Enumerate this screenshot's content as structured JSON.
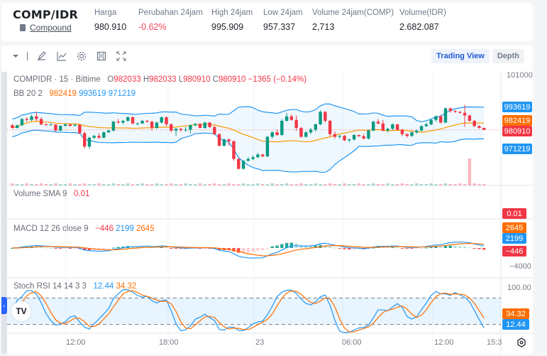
{
  "header": {
    "pair": "COMP/IDR",
    "coin_name": "Compound",
    "stats": [
      {
        "label": "Harga",
        "value": "980.910",
        "negative": false
      },
      {
        "label": "Perubahan 24jam",
        "value": "-0.62%",
        "negative": true
      },
      {
        "label": "High 24jam",
        "value": "995.909",
        "negative": false
      },
      {
        "label": "Low 24jam",
        "value": "957.337",
        "negative": false
      },
      {
        "label": "Volume 24jam(COMP)",
        "value": "2,713",
        "negative": false
      },
      {
        "label": "Volume(IDR)",
        "value": "2.682.087",
        "negative": false
      }
    ]
  },
  "toolbar": {
    "icons": [
      "chevron-down-icon",
      "separator",
      "pencil-icon",
      "indicator-chart-icon",
      "gear-icon",
      "save-icon",
      "fullscreen-icon"
    ],
    "tabs": [
      {
        "label": "Trading View",
        "active": true
      },
      {
        "label": "Depth",
        "active": false
      }
    ]
  },
  "main_pane": {
    "symbol_label": "COMPIDR · 15 · Bittime",
    "ohlc": {
      "o_label": "O",
      "o": "982033",
      "h_label": "H",
      "h": "982033",
      "l_label": "L",
      "l": "980910",
      "c_label": "C",
      "c": "980910",
      "change": "−1365 (−0.14%)"
    },
    "bb_label": "BB 20 2",
    "bb_values": {
      "basis": "982419",
      "upper": "993619",
      "lower": "971219"
    },
    "axis_top": "1010000",
    "tags": [
      {
        "value": "993619",
        "color": "#2196f3"
      },
      {
        "value": "982419",
        "color": "#ff6d00"
      },
      {
        "value": "980910",
        "color": "#f23645"
      },
      {
        "value": "971219",
        "color": "#2196f3"
      }
    ]
  },
  "volume_pane": {
    "label": "Volume SMA 9",
    "value": "0.01",
    "tag": "0.01"
  },
  "macd_pane": {
    "label": "MACD 12 26 close 9",
    "hist": "−446",
    "macd": "2199",
    "signal": "2645",
    "tags": [
      {
        "value": "2645",
        "color": "#ff6d00"
      },
      {
        "value": "2199",
        "color": "#2196f3"
      },
      {
        "value": "−446",
        "color": "#f23645"
      }
    ],
    "axis_low": "−4000"
  },
  "stoch_pane": {
    "label": "Stoch RSI 14 14 3 3",
    "k": "12.44",
    "d": "34.32",
    "axis_top": "100.00",
    "tags": [
      {
        "value": "34.32",
        "color": "#ff6d00"
      },
      {
        "value": "12.44",
        "color": "#2196f3"
      }
    ]
  },
  "time_axis": [
    "12:00",
    "18:00",
    "23",
    "06:00",
    "12:00",
    "15:3"
  ],
  "colors": {
    "up": "#089981",
    "down": "#f23645",
    "bb": "#2196f3",
    "basis": "#ff9800",
    "accent": "#1e5bd6"
  },
  "chart_data": {
    "type": "candlestick",
    "title": "COMPIDR · 15 · Bittime",
    "ylabel": "IDR",
    "ylim": [
      955000,
      1012000
    ],
    "x_ticks": [
      "12:00",
      "18:00",
      "23",
      "06:00",
      "12:00",
      "15:3"
    ],
    "candles": [
      [
        983500,
        984200,
        981500,
        982000
      ],
      [
        982000,
        983800,
        981700,
        983500
      ],
      [
        983500,
        987500,
        983000,
        987000
      ],
      [
        987000,
        988000,
        985500,
        986500
      ],
      [
        986500,
        989500,
        985800,
        988500
      ],
      [
        988500,
        991000,
        986000,
        987000
      ],
      [
        987000,
        988000,
        983500,
        984000
      ],
      [
        984000,
        984500,
        983200,
        983700
      ],
      [
        983700,
        984700,
        983400,
        983900
      ],
      [
        983900,
        984000,
        980000,
        980500
      ],
      [
        980500,
        983500,
        980000,
        983200
      ],
      [
        983200,
        984400,
        982800,
        984000
      ],
      [
        984000,
        984300,
        982600,
        983200
      ],
      [
        983200,
        984100,
        982900,
        983800
      ],
      [
        983800,
        984000,
        978500,
        979000
      ],
      [
        979000,
        980000,
        970500,
        971500
      ],
      [
        971500,
        977000,
        970200,
        976500
      ],
      [
        976500,
        978000,
        975800,
        977500
      ],
      [
        977500,
        979000,
        975800,
        976500
      ],
      [
        976500,
        980000,
        976200,
        979500
      ],
      [
        979500,
        981000,
        979200,
        980500
      ],
      [
        980500,
        986000,
        980000,
        985500
      ],
      [
        985500,
        987000,
        984500,
        985000
      ],
      [
        985000,
        986500,
        984000,
        986000
      ],
      [
        986000,
        988500,
        985500,
        988000
      ],
      [
        988000,
        988500,
        984000,
        984500
      ],
      [
        984500,
        985000,
        983500,
        984500
      ],
      [
        984500,
        986500,
        984200,
        986000
      ],
      [
        986000,
        986500,
        985000,
        985500
      ],
      [
        985500,
        986000,
        980500,
        982000
      ],
      [
        982000,
        985500,
        981500,
        985000
      ],
      [
        985000,
        988500,
        984500,
        988000
      ],
      [
        988000,
        988500,
        983000,
        984000
      ],
      [
        984000,
        984500,
        979500,
        980500
      ],
      [
        980500,
        982000,
        977500,
        981500
      ],
      [
        981500,
        981800,
        979800,
        980800
      ],
      [
        980800,
        982500,
        979800,
        981000
      ],
      [
        981000,
        984000,
        978800,
        983500
      ],
      [
        983500,
        984800,
        983000,
        984200
      ],
      [
        984200,
        984800,
        981800,
        982000
      ],
      [
        982000,
        985500,
        981500,
        985000
      ],
      [
        985000,
        985400,
        982000,
        982500
      ],
      [
        982500,
        983000,
        978000,
        978500
      ],
      [
        978500,
        979000,
        971500,
        972000
      ],
      [
        972000,
        976000,
        971500,
        975500
      ],
      [
        975500,
        976000,
        972000,
        974500
      ],
      [
        974500,
        975000,
        963500,
        964500
      ],
      [
        964500,
        965000,
        958500,
        959000
      ],
      [
        959000,
        963800,
        958500,
        963500
      ],
      [
        963500,
        965500,
        963000,
        964500
      ],
      [
        964500,
        966500,
        963800,
        965500
      ],
      [
        965500,
        968000,
        965000,
        967000
      ],
      [
        967000,
        967500,
        965500,
        966000
      ],
      [
        966000,
        977500,
        965500,
        977000
      ],
      [
        977000,
        980000,
        976000,
        979500
      ],
      [
        979500,
        981000,
        977500,
        978000
      ],
      [
        978000,
        987000,
        977500,
        986000
      ],
      [
        986000,
        990500,
        985500,
        988500
      ],
      [
        988500,
        989500,
        986000,
        986500
      ],
      [
        986500,
        989000,
        980500,
        982000
      ],
      [
        982000,
        982500,
        976500,
        977000
      ],
      [
        977000,
        980000,
        976500,
        979500
      ],
      [
        979500,
        982000,
        978500,
        981000
      ],
      [
        981000,
        984500,
        979800,
        984000
      ],
      [
        984000,
        992000,
        983500,
        991000
      ],
      [
        991000,
        991500,
        985000,
        986000
      ],
      [
        986000,
        986500,
        977500,
        978500
      ],
      [
        978500,
        980000,
        976000,
        977000
      ],
      [
        977000,
        978000,
        976000,
        977500
      ],
      [
        977500,
        978000,
        974500,
        975000
      ],
      [
        975000,
        976000,
        974000,
        975500
      ],
      [
        975500,
        978500,
        974800,
        978000
      ],
      [
        978000,
        978200,
        977000,
        977300
      ],
      [
        977300,
        978500,
        975500,
        976000
      ],
      [
        976000,
        981000,
        975500,
        980500
      ],
      [
        980500,
        986000,
        980000,
        985500
      ],
      [
        985500,
        987000,
        984000,
        984500
      ],
      [
        984500,
        986500,
        980000,
        980500
      ],
      [
        980500,
        982000,
        979500,
        981500
      ],
      [
        981500,
        984500,
        980800,
        984000
      ],
      [
        984000,
        984300,
        980500,
        981000
      ],
      [
        981000,
        981500,
        977500,
        978500
      ],
      [
        978500,
        979000,
        976500,
        977500
      ],
      [
        977500,
        980000,
        977000,
        979500
      ],
      [
        979500,
        981000,
        978800,
        980500
      ],
      [
        980500,
        983500,
        980000,
        983000
      ],
      [
        983000,
        985000,
        982500,
        984000
      ],
      [
        984000,
        987000,
        983500,
        986500
      ],
      [
        986500,
        989000,
        985500,
        988500
      ],
      [
        988500,
        989500,
        984500,
        985000
      ],
      [
        985000,
        993500,
        984800,
        993000
      ],
      [
        993000,
        993500,
        990500,
        991500
      ],
      [
        991500,
        992000,
        990500,
        991000
      ],
      [
        991000,
        991500,
        990000,
        990500
      ],
      [
        990500,
        995000,
        982500,
        989000
      ],
      [
        989000,
        989500,
        985500,
        986000
      ],
      [
        986000,
        986500,
        982500,
        983000
      ],
      [
        983000,
        983500,
        981500,
        982033
      ],
      [
        982033,
        982033,
        980910,
        980910
      ]
    ],
    "bollinger": {
      "basis_last": 982419,
      "upper_last": 993619,
      "lower_last": 971219
    },
    "volume_sma9_last": 0.01,
    "macd_last": {
      "histogram": -446,
      "macd": 2199,
      "signal": 2645
    },
    "stoch_rsi_last": {
      "k": 12.44,
      "d": 34.32
    },
    "stoch_levels": [
      80,
      20
    ]
  }
}
